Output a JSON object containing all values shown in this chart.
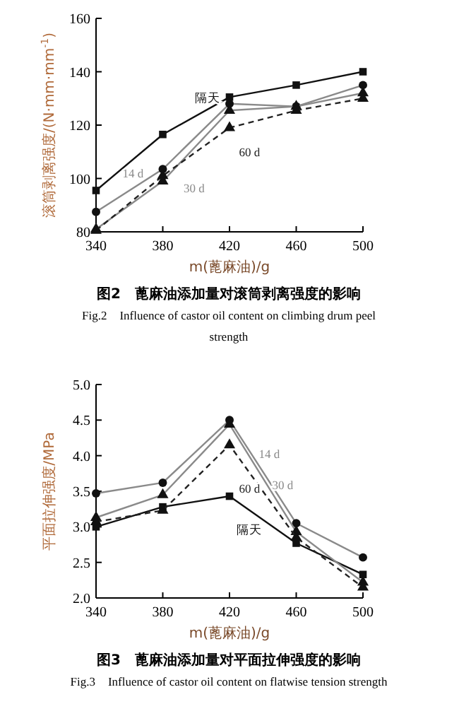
{
  "chart_data": [
    {
      "type": "line",
      "title": "图2　蓖麻油添加量对滚筒剥离强度的影响",
      "subtitle": "Fig.2　Influence of castor oil content on climbing drum peel strength",
      "xlabel": "m(蓖麻油)/g",
      "ylabel": "滚筒剥离强度/(N·mm·mm$^{-1}$)",
      "x": [
        340,
        380,
        420,
        460,
        500
      ],
      "xlim": [
        340,
        500
      ],
      "xticks": [
        340,
        380,
        420,
        460,
        500
      ],
      "ylim": [
        80,
        160
      ],
      "yticks": [
        80,
        100,
        120,
        140,
        160
      ],
      "grid": false,
      "series": [
        {
          "name": "隔天",
          "color": "#111111",
          "marker": "square",
          "line_style": "solid",
          "values": [
            95.5,
            116.5,
            130.5,
            135,
            140
          ]
        },
        {
          "name": "14 d",
          "color": "#8a8a8a",
          "marker": "circle",
          "line_style": "solid",
          "values": [
            87.5,
            103.5,
            128,
            127,
            135
          ]
        },
        {
          "name": "30 d",
          "color": "#8a8a8a",
          "marker": "triangle",
          "line_style": "solid",
          "values": [
            81,
            99,
            125.5,
            127,
            132
          ]
        },
        {
          "name": "60 d",
          "color": "#222222",
          "marker": "triangle",
          "line_style": "dashed",
          "values": [
            80.5,
            101,
            119,
            125.5,
            130
          ]
        }
      ]
    },
    {
      "type": "line",
      "title": "图3　蓖麻油添加量对平面拉伸强度的影响",
      "subtitle": "Fig.3　Influence of castor oil content on flatwise tension strength",
      "xlabel": "m(蓖麻油)/g",
      "ylabel": "平面拉伸强度/MPa",
      "x": [
        340,
        380,
        420,
        460,
        500
      ],
      "xlim": [
        340,
        500
      ],
      "xticks": [
        340,
        380,
        420,
        460,
        500
      ],
      "ylim": [
        2.0,
        5.0
      ],
      "yticks": [
        {
          "value": 2,
          "label": "2.0"
        },
        {
          "value": 2.5,
          "label": "2.5"
        },
        {
          "value": 3,
          "label": "3.0"
        },
        {
          "value": 3.5,
          "label": "3.5"
        },
        {
          "value": 4,
          "label": "4.0"
        },
        {
          "value": 4.5,
          "label": "4.5"
        },
        {
          "value": 5,
          "label": "5.0"
        }
      ],
      "grid": false,
      "series": [
        {
          "name": "隔天",
          "color": "#111111",
          "marker": "square",
          "line_style": "solid",
          "values": [
            3.0,
            3.28,
            3.43,
            2.77,
            2.33
          ]
        },
        {
          "name": "14 d",
          "color": "#8a8a8a",
          "marker": "circle",
          "line_style": "solid",
          "values": [
            3.47,
            3.62,
            4.5,
            3.05,
            2.57
          ]
        },
        {
          "name": "30 d",
          "color": "#8a8a8a",
          "marker": "triangle",
          "line_style": "solid",
          "values": [
            3.13,
            3.45,
            4.44,
            2.93,
            2.22
          ]
        },
        {
          "name": "60 d",
          "color": "#222222",
          "marker": "triangle",
          "line_style": "dashed",
          "values": [
            3.07,
            3.23,
            4.15,
            2.85,
            2.15
          ]
        }
      ]
    }
  ]
}
